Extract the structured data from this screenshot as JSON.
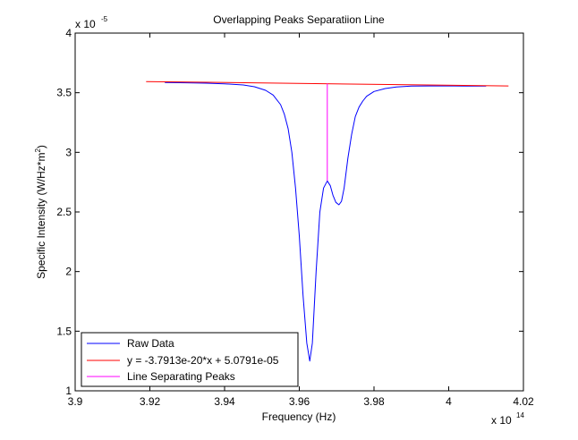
{
  "figure": {
    "background": "#ffffff"
  },
  "chart_data": {
    "type": "line",
    "title": "Overlapping Peaks Separatiion Line",
    "xlabel": "Frequency (Hz)",
    "ylabel_parts": {
      "pre": "Specific Intensity (W/Hz*m",
      "sup": "2",
      "post": ")"
    },
    "x_multiplier": {
      "base": "x 10",
      "exp": "14"
    },
    "y_multiplier": {
      "base": "x 10",
      "exp": "-5"
    },
    "xlim": [
      3.9,
      4.02
    ],
    "ylim": [
      1,
      4
    ],
    "x_ticks": [
      {
        "value": 3.9,
        "label": "3.9"
      },
      {
        "value": 3.92,
        "label": "3.92"
      },
      {
        "value": 3.94,
        "label": "3.94"
      },
      {
        "value": 3.96,
        "label": "3.96"
      },
      {
        "value": 3.98,
        "label": "3.98"
      },
      {
        "value": 4.0,
        "label": "4"
      },
      {
        "value": 4.02,
        "label": "4.02"
      }
    ],
    "y_ticks": [
      {
        "value": 1,
        "label": "1"
      },
      {
        "value": 1.5,
        "label": "1.5"
      },
      {
        "value": 2,
        "label": "2"
      },
      {
        "value": 2.5,
        "label": "2.5"
      },
      {
        "value": 3,
        "label": "3"
      },
      {
        "value": 3.5,
        "label": "3.5"
      },
      {
        "value": 4,
        "label": "4"
      }
    ],
    "grid": false,
    "legend_position": "bottom-left",
    "series": [
      {
        "name": "Raw Data",
        "color": "#0000ff",
        "x": [
          3.924,
          3.93,
          3.935,
          3.94,
          3.945,
          3.948,
          3.951,
          3.953,
          3.955,
          3.956,
          3.957,
          3.958,
          3.959,
          3.96,
          3.961,
          3.962,
          3.9628,
          3.9635,
          3.9645,
          3.9655,
          3.9665,
          3.9675,
          3.9683,
          3.969,
          3.9698,
          3.9706,
          3.9713,
          3.972,
          3.973,
          3.974,
          3.975,
          3.976,
          3.977,
          3.978,
          3.98,
          3.983,
          3.986,
          3.99,
          3.995,
          4.0,
          4.005,
          4.01
        ],
        "y": [
          3.585,
          3.583,
          3.58,
          3.575,
          3.565,
          3.55,
          3.52,
          3.48,
          3.4,
          3.32,
          3.2,
          3.0,
          2.7,
          2.3,
          1.8,
          1.4,
          1.25,
          1.4,
          2.0,
          2.5,
          2.7,
          2.76,
          2.72,
          2.64,
          2.58,
          2.56,
          2.59,
          2.7,
          2.95,
          3.15,
          3.3,
          3.38,
          3.43,
          3.47,
          3.51,
          3.535,
          3.548,
          3.555,
          3.557,
          3.557,
          3.556,
          3.555
        ]
      },
      {
        "name": "y = -3.7913e-20*x + 5.0791e-05",
        "color": "#ff0000",
        "x": [
          3.919,
          4.016
        ],
        "y": [
          3.5934,
          3.5566
        ]
      },
      {
        "name": "Line Separating Peaks",
        "color": "#ff00ff",
        "x": [
          3.9675,
          3.9675
        ],
        "y": [
          2.76,
          3.577
        ]
      }
    ]
  }
}
